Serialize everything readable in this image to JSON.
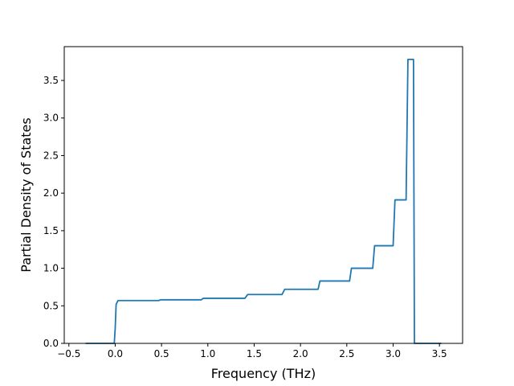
{
  "chart_data": {
    "type": "line",
    "title": "",
    "xlabel": "Frequency (THz)",
    "ylabel": "Partial Density of States",
    "xlim": [
      -0.55,
      3.75
    ],
    "ylim": [
      0.0,
      3.95
    ],
    "xticks": [
      -0.5,
      0.0,
      0.5,
      1.0,
      1.5,
      2.0,
      2.5,
      3.0,
      3.5
    ],
    "xtick_labels": [
      "−0.5",
      "0.0",
      "0.5",
      "1.0",
      "1.5",
      "2.0",
      "2.5",
      "3.0",
      "3.5"
    ],
    "yticks": [
      0.0,
      0.5,
      1.0,
      1.5,
      2.0,
      2.5,
      3.0,
      3.5
    ],
    "ytick_labels": [
      "0.0",
      "0.5",
      "1.0",
      "1.5",
      "2.0",
      "2.5",
      "3.0",
      "3.5"
    ],
    "grid": false,
    "series": [
      {
        "color": "#1f77b4",
        "x": [
          -0.32,
          -0.01,
          0.0,
          0.01,
          0.03,
          0.05,
          0.47,
          0.49,
          0.93,
          0.95,
          1.4,
          1.43,
          1.8,
          1.83,
          2.19,
          2.21,
          2.53,
          2.55,
          2.78,
          2.8,
          3.0,
          3.02,
          3.14,
          3.16,
          3.22,
          3.23,
          3.52
        ],
        "y": [
          0.0,
          0.0,
          0.2,
          0.52,
          0.57,
          0.57,
          0.57,
          0.58,
          0.58,
          0.6,
          0.6,
          0.65,
          0.65,
          0.72,
          0.72,
          0.83,
          0.83,
          1.0,
          1.0,
          1.3,
          1.3,
          1.91,
          1.91,
          3.78,
          3.78,
          0.0,
          0.0
        ]
      }
    ]
  }
}
